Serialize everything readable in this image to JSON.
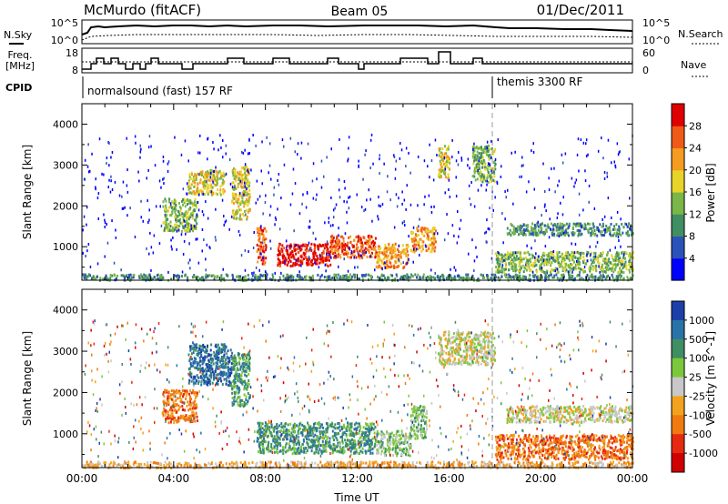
{
  "header": {
    "station": "McMurdo (fitACF)",
    "beam": "Beam 05",
    "date": "01/Dec/2011"
  },
  "noise_panel": {
    "left_label": "N.Sky",
    "right_label": "N.Search",
    "left_ticks": [
      "10^5",
      "10^0"
    ],
    "right_ticks": [
      "10^5",
      "10^0"
    ]
  },
  "freq_panel": {
    "left_label_1": "Freq.",
    "left_label_2": "[MHz]",
    "right_label": "Nave",
    "left_ticks": [
      "18",
      "8"
    ],
    "right_ticks": [
      "60",
      "0"
    ]
  },
  "cpid": {
    "label": "CPID",
    "segments": [
      {
        "text": "normalsound (fast) 157 RF",
        "start_hour": 0
      },
      {
        "text": "themis 3300 RF",
        "start_hour": 18
      }
    ]
  },
  "chart_data": [
    {
      "type": "heatmap",
      "ylabel": "Slant Range [km]",
      "xlabel": "",
      "xlim": [
        0,
        24
      ],
      "ylim": [
        180,
        4500
      ],
      "yticks": [
        "1000",
        "2000",
        "3000",
        "4000"
      ],
      "colorbar": {
        "label": "Power [dB]",
        "ticks": [
          "4",
          "8",
          "12",
          "16",
          "20",
          "24",
          "28"
        ],
        "colors": [
          "#0000ff",
          "#2a52b8",
          "#3f8f63",
          "#7ab648",
          "#e8d428",
          "#f59b20",
          "#f05a18",
          "#e00000"
        ]
      },
      "echo_regions": [
        {
          "t": [
            0.0,
            24.0
          ],
          "r": [
            200,
            350
          ],
          "level": 2
        },
        {
          "t": [
            3.5,
            5.0
          ],
          "r": [
            1400,
            2200
          ],
          "level": 3
        },
        {
          "t": [
            4.6,
            6.2
          ],
          "r": [
            2300,
            2900
          ],
          "level": 4
        },
        {
          "t": [
            6.5,
            7.3
          ],
          "r": [
            1700,
            3000
          ],
          "level": 4
        },
        {
          "t": [
            7.6,
            8.0
          ],
          "r": [
            600,
            1500
          ],
          "level": 6
        },
        {
          "t": [
            8.5,
            10.8
          ],
          "r": [
            550,
            1100
          ],
          "level": 7
        },
        {
          "t": [
            10.8,
            12.8
          ],
          "r": [
            750,
            1300
          ],
          "level": 6
        },
        {
          "t": [
            12.8,
            14.2
          ],
          "r": [
            500,
            1100
          ],
          "level": 5
        },
        {
          "t": [
            14.3,
            15.4
          ],
          "r": [
            900,
            1500
          ],
          "level": 5
        },
        {
          "t": [
            15.5,
            16.0
          ],
          "r": [
            2700,
            3500
          ],
          "level": 4
        },
        {
          "t": [
            17.0,
            18.0
          ],
          "r": [
            2600,
            3500
          ],
          "level": 3
        },
        {
          "t": [
            18.5,
            24.0
          ],
          "r": [
            1300,
            1600
          ],
          "level": 2
        },
        {
          "t": [
            18.0,
            24.0
          ],
          "r": [
            400,
            900
          ],
          "level": 3
        }
      ]
    },
    {
      "type": "heatmap",
      "ylabel": "Slant Range [km]",
      "xlabel": "Time UT",
      "xlim": [
        0,
        24
      ],
      "ylim": [
        180,
        4500
      ],
      "xticks": [
        "00:00",
        "04:00",
        "08:00",
        "12:00",
        "16:00",
        "20:00",
        "00:00"
      ],
      "yticks": [
        "1000",
        "2000",
        "3000",
        "4000"
      ],
      "colorbar": {
        "label": "Velocity [m s^-1]",
        "ticks": [
          "1000",
          "500",
          "100",
          "25",
          "-25",
          "-100",
          "-500",
          "-1000"
        ],
        "colors": [
          "#1c3fa8",
          "#2a73a8",
          "#3f8f63",
          "#7cc83c",
          "#c8c8c8",
          "#f3a21e",
          "#f07a10",
          "#e62a12",
          "#d00000"
        ]
      },
      "echo_regions": [
        {
          "t": [
            0.0,
            24.0
          ],
          "r": [
            200,
            350
          ],
          "level": 5
        },
        {
          "t": [
            3.5,
            5.0
          ],
          "r": [
            1300,
            2100
          ],
          "level": 6
        },
        {
          "t": [
            4.6,
            6.5
          ],
          "r": [
            2200,
            3200
          ],
          "level": 1
        },
        {
          "t": [
            6.5,
            7.3
          ],
          "r": [
            1700,
            3000
          ],
          "level": 2
        },
        {
          "t": [
            7.6,
            12.8
          ],
          "r": [
            550,
            1300
          ],
          "level": 2
        },
        {
          "t": [
            12.8,
            14.3
          ],
          "r": [
            500,
            1100
          ],
          "level": 3
        },
        {
          "t": [
            14.3,
            15.0
          ],
          "r": [
            900,
            1700
          ],
          "level": 3
        },
        {
          "t": [
            15.5,
            18.0
          ],
          "r": [
            2700,
            3500
          ],
          "level": 4
        },
        {
          "t": [
            18.5,
            24.0
          ],
          "r": [
            1300,
            1700
          ],
          "level": 4
        },
        {
          "t": [
            18.0,
            24.0
          ],
          "r": [
            400,
            1000
          ],
          "level": 6
        }
      ]
    }
  ]
}
